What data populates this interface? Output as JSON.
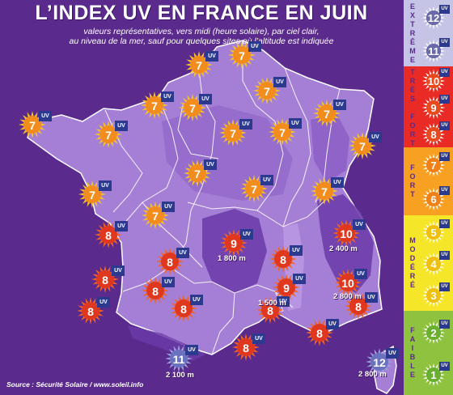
{
  "title": "L’INDEX UV EN FRANCE EN JUIN",
  "subtitle_lines": [
    "valeurs représentatives, vers midi (heure solaire), par ciel clair,",
    "au niveau de la mer, sauf pour quelques sites où l’altitude est indiquée"
  ],
  "source": "Source : Sécurité Solaire / www.soleil.info",
  "colors": {
    "background": "#5a2a8c",
    "map_light": "#a57fd6",
    "map_mid": "#8a5cc4",
    "map_dark": "#6a3aa8",
    "borders": "#ffffff",
    "uv_tag": "#2b3a8e"
  },
  "icon_names": [
    "sun-uv-icon"
  ],
  "map_markers": [
    {
      "value": "7",
      "level": "high"
    },
    {
      "value": "7",
      "level": "high"
    },
    {
      "value": "7",
      "level": "high"
    },
    {
      "value": "7",
      "level": "high"
    },
    {
      "value": "7",
      "level": "high"
    },
    {
      "value": "7",
      "level": "high"
    },
    {
      "value": "7",
      "level": "high"
    },
    {
      "value": "7",
      "level": "high"
    },
    {
      "value": "7",
      "level": "high"
    },
    {
      "value": "7",
      "level": "high"
    },
    {
      "value": "7",
      "level": "high"
    },
    {
      "value": "7",
      "level": "high"
    },
    {
      "value": "7",
      "level": "high"
    },
    {
      "value": "7",
      "level": "high"
    },
    {
      "value": "7",
      "level": "high"
    },
    {
      "value": "7",
      "level": "high"
    },
    {
      "value": "8",
      "level": "very_high"
    },
    {
      "value": "9",
      "level": "very_high"
    },
    {
      "value": "10",
      "level": "very_high"
    },
    {
      "value": "8",
      "level": "very_high"
    },
    {
      "value": "8",
      "level": "very_high"
    },
    {
      "value": "8",
      "level": "very_high"
    },
    {
      "value": "9",
      "level": "very_high"
    },
    {
      "value": "10",
      "level": "very_high"
    },
    {
      "value": "8",
      "level": "very_high"
    },
    {
      "value": "8",
      "level": "very_high"
    },
    {
      "value": "8",
      "level": "very_high"
    },
    {
      "value": "8",
      "level": "very_high"
    },
    {
      "value": "8",
      "level": "very_high"
    },
    {
      "value": "8",
      "level": "very_high"
    },
    {
      "value": "8",
      "level": "very_high"
    },
    {
      "value": "11",
      "level": "extreme"
    },
    {
      "value": "12",
      "level": "extreme"
    }
  ],
  "altitude_labels": [
    "1 800 m",
    "2 400 m",
    "1 500 m",
    "2 800 m",
    "2 100 m",
    "2 800 m"
  ],
  "legend": {
    "bands": [
      {
        "word": "EXTRÊME",
        "color": "#c6c4e6",
        "letters": [
          "E",
          "X",
          "T",
          "R",
          "Ê",
          "M",
          "E"
        ],
        "values": [
          "12",
          "11"
        ],
        "icon_color": "#6a6aa8"
      },
      {
        "word": "TRÈS FORT",
        "color": "#ea2a24",
        "letters": [
          "T",
          "R",
          "È",
          "S",
          "",
          "F",
          "O",
          "R",
          "T"
        ],
        "values": [
          "10",
          "9",
          "8"
        ],
        "icon_color": "#e84a20"
      },
      {
        "word": "FORT",
        "color": "#f7a022",
        "letters": [
          "F",
          "O",
          "R",
          "T"
        ],
        "values": [
          "7",
          "6"
        ],
        "icon_color": "#f08018"
      },
      {
        "word": "MODÉRÉ",
        "color": "#f6e62a",
        "letters": [
          "M",
          "O",
          "D",
          "É",
          "R",
          "É"
        ],
        "values": [
          "5",
          "4",
          "3"
        ],
        "icon_color": "#f0c010"
      },
      {
        "word": "FAIBLE",
        "color": "#8fc23f",
        "letters": [
          "F",
          "A",
          "I",
          "B",
          "L",
          "E"
        ],
        "values": [
          "2",
          "1"
        ],
        "icon_color": "#6ab030"
      }
    ]
  },
  "uv_tag_text": "UV"
}
